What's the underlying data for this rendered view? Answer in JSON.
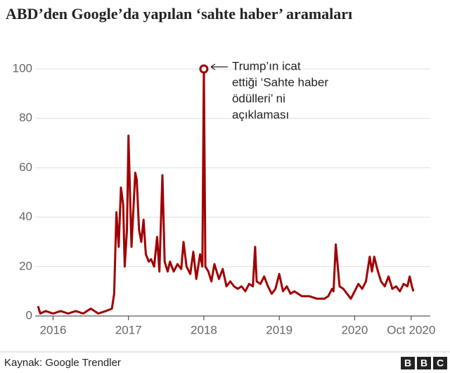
{
  "chart_data": {
    "type": "line",
    "title": "ABD’den Google’da yapılan  ‘sahte haber’ aramaları",
    "annotation": [
      "Trump’ın icat",
      "ettiği ‘Sahte haber",
      "ödülleri’  ni",
      "açıklaması"
    ],
    "source": "Kaynak: Google Trendler",
    "logo": [
      "B",
      "B",
      "C"
    ],
    "xlim": [
      2015.79,
      2020.78
    ],
    "xticks": [
      2016,
      2017,
      2018,
      2019,
      2020,
      {
        "value": 2020.75,
        "label": "Oct 2020"
      }
    ],
    "ylim": [
      0,
      100
    ],
    "yticks": [
      0,
      20,
      40,
      60,
      80,
      100
    ],
    "grid": true,
    "series": [
      {
        "name": "sahte haber",
        "color": "#a00000",
        "x": [
          2015.8,
          2015.83,
          2015.9,
          2016.0,
          2016.1,
          2016.2,
          2016.3,
          2016.4,
          2016.5,
          2016.6,
          2016.7,
          2016.78,
          2016.81,
          2016.84,
          2016.87,
          2016.9,
          2016.93,
          2016.95,
          2016.98,
          2017.0,
          2017.02,
          2017.04,
          2017.06,
          2017.09,
          2017.11,
          2017.14,
          2017.17,
          2017.2,
          2017.23,
          2017.27,
          2017.3,
          2017.34,
          2017.38,
          2017.41,
          2017.45,
          2017.48,
          2017.52,
          2017.55,
          2017.6,
          2017.65,
          2017.7,
          2017.73,
          2017.77,
          2017.82,
          2017.86,
          2017.9,
          2017.95,
          2017.98,
          2018.0,
          2018.02,
          2018.06,
          2018.1,
          2018.14,
          2018.2,
          2018.25,
          2018.3,
          2018.35,
          2018.4,
          2018.45,
          2018.5,
          2018.55,
          2018.6,
          2018.65,
          2018.68,
          2018.7,
          2018.75,
          2018.8,
          2018.85,
          2018.9,
          2018.95,
          2019.0,
          2019.05,
          2019.1,
          2019.15,
          2019.2,
          2019.3,
          2019.4,
          2019.5,
          2019.6,
          2019.65,
          2019.7,
          2019.72,
          2019.75,
          2019.8,
          2019.85,
          2019.9,
          2019.95,
          2020.0,
          2020.05,
          2020.1,
          2020.15,
          2020.2,
          2020.23,
          2020.26,
          2020.3,
          2020.35,
          2020.4,
          2020.45,
          2020.5,
          2020.55,
          2020.6,
          2020.65,
          2020.7,
          2020.73,
          2020.76,
          2020.78
        ],
        "values": [
          4,
          1,
          2,
          1,
          2,
          1,
          2,
          1,
          3,
          1,
          2,
          3,
          9,
          42,
          28,
          52,
          45,
          20,
          35,
          73,
          50,
          28,
          40,
          58,
          55,
          35,
          30,
          39,
          25,
          22,
          23,
          20,
          32,
          18,
          57,
          22,
          18,
          22,
          18,
          21,
          19,
          30,
          20,
          17,
          26,
          15,
          25,
          20,
          100,
          20,
          18,
          14,
          21,
          15,
          19,
          12,
          14,
          12,
          11,
          12,
          10,
          13,
          12,
          28,
          14,
          13,
          16,
          12,
          9,
          11,
          17,
          10,
          12,
          9,
          10,
          8,
          8,
          7,
          7,
          8,
          11,
          10,
          29,
          12,
          11,
          9,
          7,
          10,
          13,
          11,
          14,
          24,
          18,
          24,
          19,
          14,
          12,
          16,
          11,
          12,
          10,
          13,
          12,
          16,
          12,
          10
        ]
      }
    ]
  }
}
